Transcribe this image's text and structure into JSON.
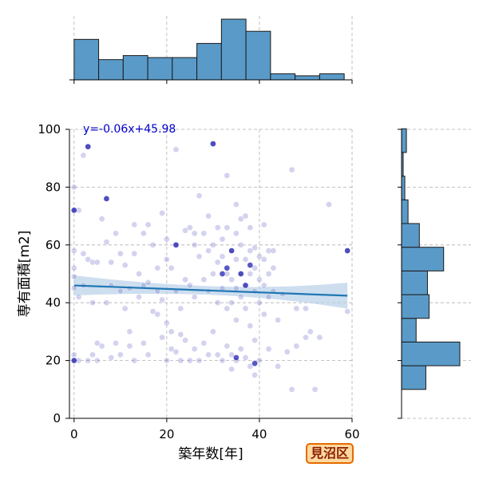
{
  "chart_data": {
    "type": "scatter",
    "xlabel": "築年数[年]",
    "ylabel": "専有面積[m2]",
    "xlim": [
      -1,
      60
    ],
    "ylim": [
      0,
      100
    ],
    "x_ticks": [
      0,
      20,
      40,
      60
    ],
    "y_ticks": [
      0,
      20,
      40,
      60,
      80,
      100
    ],
    "grid": true,
    "regression": {
      "label": "y=-0.06x+45.98",
      "slope": -0.06,
      "intercept": 45.98,
      "x_range": [
        0,
        59
      ],
      "ci_halfwidth_start": 3.5,
      "ci_halfwidth_mid": 1.5,
      "ci_halfwidth_end": 4.5
    },
    "points": [
      [
        0,
        80
      ],
      [
        0,
        72
      ],
      [
        0,
        58
      ],
      [
        0,
        52
      ],
      [
        0,
        49
      ],
      [
        0,
        45
      ],
      [
        0,
        22
      ],
      [
        0,
        20
      ],
      [
        1,
        72
      ],
      [
        1,
        42
      ],
      [
        1,
        20
      ],
      [
        2,
        91
      ],
      [
        2,
        57
      ],
      [
        2,
        46
      ],
      [
        3,
        94
      ],
      [
        3,
        55
      ],
      [
        3,
        20
      ],
      [
        4,
        54
      ],
      [
        4,
        40
      ],
      [
        4,
        22
      ],
      [
        5,
        54
      ],
      [
        5,
        26
      ],
      [
        5,
        20
      ],
      [
        6,
        69
      ],
      [
        6,
        25
      ],
      [
        7,
        76
      ],
      [
        7,
        61
      ],
      [
        7,
        40
      ],
      [
        8,
        54
      ],
      [
        8,
        46
      ],
      [
        8,
        21
      ],
      [
        9,
        64
      ],
      [
        9,
        26
      ],
      [
        10,
        57
      ],
      [
        10,
        44
      ],
      [
        10,
        22
      ],
      [
        11,
        53
      ],
      [
        11,
        38
      ],
      [
        12,
        45
      ],
      [
        12,
        30
      ],
      [
        12,
        25
      ],
      [
        13,
        67
      ],
      [
        13,
        57
      ],
      [
        13,
        20
      ],
      [
        14,
        50
      ],
      [
        14,
        42
      ],
      [
        15,
        64
      ],
      [
        15,
        46
      ],
      [
        15,
        26
      ],
      [
        16,
        67
      ],
      [
        16,
        47
      ],
      [
        16,
        22
      ],
      [
        17,
        60
      ],
      [
        17,
        37
      ],
      [
        18,
        52
      ],
      [
        18,
        44
      ],
      [
        18,
        36
      ],
      [
        19,
        71
      ],
      [
        19,
        41
      ],
      [
        19,
        28
      ],
      [
        20,
        62
      ],
      [
        20,
        55
      ],
      [
        20,
        33
      ],
      [
        20,
        20
      ],
      [
        21,
        52
      ],
      [
        21,
        30
      ],
      [
        21,
        24
      ],
      [
        22,
        93
      ],
      [
        22,
        60
      ],
      [
        22,
        44
      ],
      [
        22,
        23
      ],
      [
        23,
        38
      ],
      [
        23,
        29
      ],
      [
        23,
        20
      ],
      [
        24,
        65
      ],
      [
        24,
        48
      ],
      [
        24,
        27
      ],
      [
        25,
        66
      ],
      [
        25,
        46
      ],
      [
        25,
        20
      ],
      [
        26,
        64
      ],
      [
        26,
        60
      ],
      [
        26,
        42
      ],
      [
        26,
        24
      ],
      [
        27,
        77
      ],
      [
        27,
        56
      ],
      [
        27,
        20
      ],
      [
        28,
        64
      ],
      [
        28,
        48
      ],
      [
        28,
        26
      ],
      [
        29,
        70
      ],
      [
        29,
        58
      ],
      [
        29,
        44
      ],
      [
        29,
        22
      ],
      [
        30,
        95
      ],
      [
        30,
        60
      ],
      [
        30,
        50
      ],
      [
        30,
        30
      ],
      [
        31,
        66
      ],
      [
        31,
        54
      ],
      [
        31,
        40
      ],
      [
        31,
        22
      ],
      [
        32,
        62
      ],
      [
        32,
        56
      ],
      [
        32,
        45
      ],
      [
        32,
        20
      ],
      [
        33,
        84
      ],
      [
        33,
        66
      ],
      [
        33,
        50
      ],
      [
        33,
        38
      ],
      [
        33,
        25
      ],
      [
        34,
        58
      ],
      [
        34,
        48
      ],
      [
        34,
        40
      ],
      [
        34,
        22
      ],
      [
        34,
        17
      ],
      [
        35,
        74
      ],
      [
        35,
        64
      ],
      [
        35,
        55
      ],
      [
        35,
        45
      ],
      [
        35,
        34
      ],
      [
        35,
        20
      ],
      [
        36,
        69
      ],
      [
        36,
        60
      ],
      [
        36,
        50
      ],
      [
        36,
        42
      ],
      [
        36,
        24
      ],
      [
        37,
        70
      ],
      [
        37,
        55
      ],
      [
        37,
        46
      ],
      [
        37,
        38
      ],
      [
        37,
        21
      ],
      [
        38,
        66
      ],
      [
        38,
        58
      ],
      [
        38,
        50
      ],
      [
        38,
        32
      ],
      [
        38,
        18
      ],
      [
        39,
        59
      ],
      [
        39,
        52
      ],
      [
        39,
        44
      ],
      [
        39,
        27
      ],
      [
        39,
        15
      ],
      [
        40,
        56
      ],
      [
        40,
        48
      ],
      [
        40,
        40
      ],
      [
        40,
        20
      ],
      [
        41,
        67
      ],
      [
        41,
        55
      ],
      [
        41,
        46
      ],
      [
        41,
        36
      ],
      [
        42,
        58
      ],
      [
        42,
        50
      ],
      [
        42,
        42
      ],
      [
        42,
        24
      ],
      [
        43,
        58
      ],
      [
        43,
        52
      ],
      [
        43,
        44
      ],
      [
        44,
        18
      ],
      [
        44,
        34
      ],
      [
        45,
        43
      ],
      [
        46,
        23
      ],
      [
        47,
        86
      ],
      [
        47,
        10
      ],
      [
        48,
        38
      ],
      [
        48,
        25
      ],
      [
        50,
        38
      ],
      [
        50,
        28
      ],
      [
        51,
        30
      ],
      [
        52,
        10
      ],
      [
        53,
        28
      ],
      [
        55,
        74
      ],
      [
        59,
        58
      ],
      [
        59,
        37
      ]
    ],
    "dark_points": [
      [
        3,
        94
      ],
      [
        7,
        76
      ],
      [
        0,
        72
      ],
      [
        22,
        60
      ],
      [
        34,
        58
      ],
      [
        38,
        53
      ],
      [
        33,
        52
      ],
      [
        37,
        46
      ],
      [
        39,
        19
      ],
      [
        35,
        21
      ],
      [
        30,
        95
      ],
      [
        59,
        58
      ],
      [
        0,
        20
      ],
      [
        36,
        50
      ],
      [
        32,
        50
      ]
    ],
    "top_hist": {
      "bin_edges": [
        0,
        5.3,
        10.6,
        15.9,
        21.2,
        26.5,
        31.8,
        37.1,
        42.4,
        47.7,
        53,
        58.3
      ],
      "counts": [
        20,
        10,
        12,
        11,
        11,
        18,
        30,
        24,
        3,
        2,
        3
      ]
    },
    "right_hist": {
      "bin_edges": [
        10,
        18.2,
        26.4,
        34.6,
        42.8,
        51,
        59.2,
        67.4,
        75.6,
        83.8,
        92,
        100.2
      ],
      "counts": [
        15,
        36,
        9,
        17,
        16,
        26,
        11,
        4,
        2,
        1,
        3
      ]
    },
    "colors": {
      "point": "#8080d0",
      "point_dark": "#2020b0",
      "line": "#1f77b4",
      "ci": "#b8d0e8",
      "bar": "#5a9ac8"
    }
  },
  "badge": {
    "label": "見沼区"
  }
}
